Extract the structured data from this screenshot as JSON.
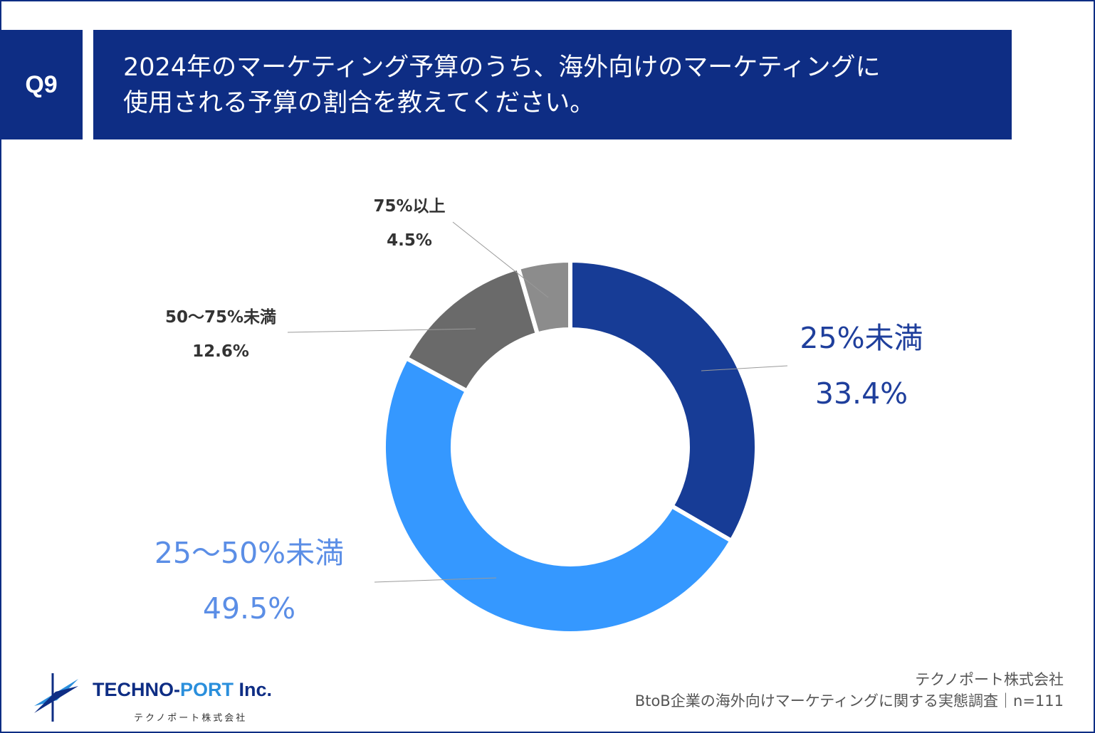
{
  "question": {
    "number": "Q9",
    "line1": "2024年のマーケティング予算のうち、海外向けのマーケティングに",
    "line2": "使用される予算の割合を教えてください。"
  },
  "chart_data": {
    "type": "pie",
    "donut": true,
    "categories": [
      "25%未満",
      "25～50%未満",
      "50～75%未満",
      "75%以上"
    ],
    "values": [
      33.4,
      49.5,
      12.6,
      4.5
    ],
    "value_labels": [
      "33.4%",
      "49.5%",
      "12.6%",
      "4.5%"
    ],
    "colors": [
      "#173c96",
      "#3598ff",
      "#6a6a6a",
      "#8c8c8c"
    ],
    "label_colors": [
      "#1f3f9c",
      "#5b8ee6",
      "#333333",
      "#333333"
    ]
  },
  "logo": {
    "name_part1": "TECHNO-",
    "name_part2": "PORT",
    "name_part3": " Inc.",
    "subtitle": "テクノポート株式会社"
  },
  "source": {
    "line1": "テクノポート株式会社",
    "line2": "BtoB企業の海外向けマーケティングに関する実態調査｜n=111"
  }
}
